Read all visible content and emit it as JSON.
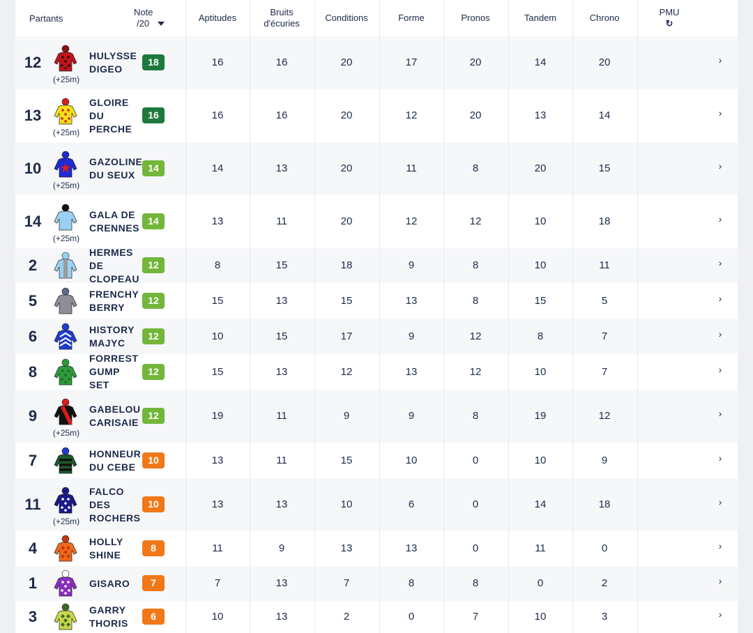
{
  "header": {
    "partants": "Partants",
    "note_line1": "Note",
    "note_line2": "/20",
    "aptitudes": "Aptitudes",
    "bruits_line1": "Bruits",
    "bruits_line2": "d'écuries",
    "conditions": "Conditions",
    "forme": "Forme",
    "pronos": "Pronos",
    "tandem": "Tandem",
    "chrono": "Chrono",
    "pmu": "PMU",
    "pmu_icon": "↻"
  },
  "rows": [
    {
      "num": "12",
      "name1": "HULYSSE",
      "name2": "DIGEO",
      "name3": "",
      "handicap": "(+25m)",
      "note": "18",
      "note_color": "#1e7a3c",
      "aptitudes": "16",
      "bruits": "16",
      "conditions": "20",
      "forme": "17",
      "pronos": "20",
      "tandem": "14",
      "chrono": "20",
      "chev": "›",
      "jersey": {
        "body": "#c0141b",
        "pattern": "dots",
        "accent": "#2b0a0a",
        "cap": "#8b1010"
      }
    },
    {
      "num": "13",
      "name1": "GLOIRE",
      "name2": "DU",
      "name3": "PERCHE",
      "handicap": "(+25m)",
      "note": "16",
      "note_color": "#1e7a3c",
      "aptitudes": "16",
      "bruits": "16",
      "conditions": "20",
      "forme": "12",
      "pronos": "20",
      "tandem": "13",
      "chrono": "14",
      "chev": "›",
      "jersey": {
        "body": "#f4e01a",
        "pattern": "dots",
        "accent": "#d62020",
        "cap": "#d62020"
      }
    },
    {
      "num": "10",
      "name1": "GAZOLINE",
      "name2": "DU SEUX",
      "name3": "",
      "handicap": "(+25m)",
      "note": "14",
      "note_color": "#72b63a",
      "aptitudes": "14",
      "bruits": "13",
      "conditions": "20",
      "forme": "11",
      "pronos": "8",
      "tandem": "20",
      "chrono": "15",
      "chev": "›",
      "jersey": {
        "body": "#1f2bd0",
        "pattern": "star",
        "accent": "#e21a1a",
        "cap": "#1f2bd0"
      }
    },
    {
      "num": "14",
      "name1": "GALA DE",
      "name2": "CRENNES",
      "name3": "",
      "handicap": "(+25m)",
      "note": "14",
      "note_color": "#72b63a",
      "aptitudes": "13",
      "bruits": "11",
      "conditions": "20",
      "forme": "12",
      "pronos": "12",
      "tandem": "10",
      "chrono": "18",
      "chev": "›",
      "jersey": {
        "body": "#9ad0f2",
        "pattern": "plain",
        "accent": "#9ad0f2",
        "cap": "#111111"
      }
    },
    {
      "num": "2",
      "name1": "HERMES",
      "name2": "DE",
      "name3": "CLOPEAU",
      "handicap": "",
      "note": "12",
      "note_color": "#72b63a",
      "aptitudes": "8",
      "bruits": "15",
      "conditions": "18",
      "forme": "9",
      "pronos": "8",
      "tandem": "10",
      "chrono": "11",
      "chev": "›",
      "jersey": {
        "body": "#9ad0f2",
        "pattern": "stripe",
        "accent": "#9a9a9a",
        "cap": "#9ad0f2"
      }
    },
    {
      "num": "5",
      "name1": "FRENCHY",
      "name2": "BERRY",
      "name3": "",
      "handicap": "",
      "note": "12",
      "note_color": "#72b63a",
      "aptitudes": "15",
      "bruits": "13",
      "conditions": "15",
      "forme": "13",
      "pronos": "8",
      "tandem": "15",
      "chrono": "5",
      "chev": "›",
      "jersey": {
        "body": "#8e8e96",
        "pattern": "plain",
        "accent": "#8e8e96",
        "cap": "#5b6b8c"
      }
    },
    {
      "num": "6",
      "name1": "HISTORY",
      "name2": "MAJYC",
      "name3": "",
      "handicap": "",
      "note": "12",
      "note_color": "#72b63a",
      "aptitudes": "10",
      "bruits": "15",
      "conditions": "17",
      "forme": "9",
      "pronos": "12",
      "tandem": "8",
      "chrono": "7",
      "chev": "›",
      "jersey": {
        "body": "#1f3bd0",
        "pattern": "chevron",
        "accent": "#ffffff",
        "cap": "#1f3bd0"
      }
    },
    {
      "num": "8",
      "name1": "FORREST",
      "name2": "GUMP",
      "name3": "SET",
      "handicap": "",
      "note": "12",
      "note_color": "#72b63a",
      "aptitudes": "15",
      "bruits": "13",
      "conditions": "12",
      "forme": "13",
      "pronos": "12",
      "tandem": "10",
      "chrono": "7",
      "chev": "›",
      "jersey": {
        "body": "#2e9a3a",
        "pattern": "dots",
        "accent": "#1d6a24",
        "cap": "#2e9a3a"
      }
    },
    {
      "num": "9",
      "name1": "GABELOU",
      "name2": "CARISAIE",
      "name3": "",
      "handicap": "(+25m)",
      "note": "12",
      "note_color": "#72b63a",
      "aptitudes": "19",
      "bruits": "11",
      "conditions": "9",
      "forme": "9",
      "pronos": "8",
      "tandem": "19",
      "chrono": "12",
      "chev": "›",
      "jersey": {
        "body": "#111111",
        "pattern": "sash",
        "accent": "#d81b1b",
        "cap": "#d81b1b"
      }
    },
    {
      "num": "7",
      "name1": "HONNEUR",
      "name2": "DU CEBE",
      "name3": "",
      "handicap": "",
      "note": "10",
      "note_color": "#f07818",
      "aptitudes": "13",
      "bruits": "11",
      "conditions": "15",
      "forme": "10",
      "pronos": "0",
      "tandem": "10",
      "chrono": "9",
      "chev": "›",
      "jersey": {
        "body": "#1a5a2a",
        "pattern": "hoops",
        "accent": "#111111",
        "cap": "#1f3bd0"
      }
    },
    {
      "num": "11",
      "name1": "FALCO",
      "name2": "DES",
      "name3": "ROCHERS",
      "handicap": "(+25m)",
      "note": "10",
      "note_color": "#f07818",
      "aptitudes": "13",
      "bruits": "13",
      "conditions": "10",
      "forme": "6",
      "pronos": "0",
      "tandem": "14",
      "chrono": "18",
      "chev": "›",
      "jersey": {
        "body": "#1a1a8a",
        "pattern": "dots",
        "accent": "#ffffff",
        "cap": "#1a1a8a"
      }
    },
    {
      "num": "4",
      "name1": "HOLLY",
      "name2": "SHINE",
      "name3": "",
      "handicap": "",
      "note": "8",
      "note_color": "#f07818",
      "aptitudes": "11",
      "bruits": "9",
      "conditions": "13",
      "forme": "13",
      "pronos": "0",
      "tandem": "11",
      "chrono": "0",
      "chev": "›",
      "jersey": {
        "body": "#f06a1a",
        "pattern": "diamonds",
        "accent": "#c43a10",
        "cap": "#c43a10"
      }
    },
    {
      "num": "1",
      "name1": "GISARO",
      "name2": "",
      "name3": "",
      "handicap": "",
      "note": "7",
      "note_color": "#f07818",
      "aptitudes": "7",
      "bruits": "13",
      "conditions": "7",
      "forme": "8",
      "pronos": "8",
      "tandem": "0",
      "chrono": "2",
      "chev": "›",
      "jersey": {
        "body": "#8a2ec0",
        "pattern": "dots",
        "accent": "#ffffff",
        "cap": "#ffffff"
      }
    },
    {
      "num": "3",
      "name1": "GARRY",
      "name2": "THORIS",
      "name3": "",
      "handicap": "",
      "note": "6",
      "note_color": "#f07818",
      "aptitudes": "10",
      "bruits": "13",
      "conditions": "2",
      "forme": "0",
      "pronos": "7",
      "tandem": "10",
      "chrono": "3",
      "chev": "›",
      "jersey": {
        "body": "#c8d64a",
        "pattern": "diamonds",
        "accent": "#3a6a2a",
        "cap": "#3a6a2a"
      }
    }
  ]
}
